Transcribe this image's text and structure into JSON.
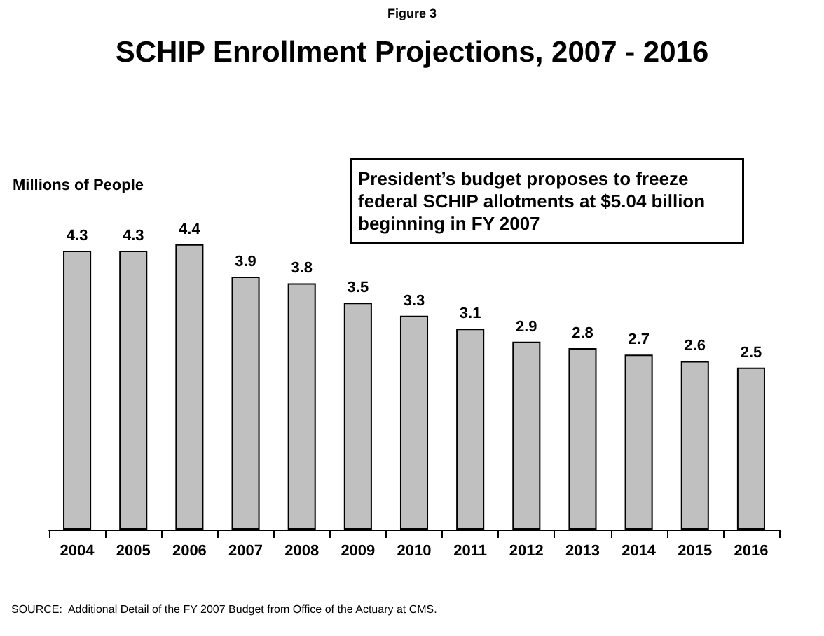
{
  "chart_data": {
    "type": "bar",
    "title": "SCHIP Enrollment Projections, 2007 - 2016",
    "ylabel": "Millions of People",
    "categories": [
      "2004",
      "2005",
      "2006",
      "2007",
      "2008",
      "2009",
      "2010",
      "2011",
      "2012",
      "2013",
      "2014",
      "2015",
      "2016"
    ],
    "values": [
      4.3,
      4.3,
      4.4,
      3.9,
      3.8,
      3.5,
      3.3,
      3.1,
      2.9,
      2.8,
      2.7,
      2.6,
      2.5
    ],
    "color": "#c0c0c0",
    "data_labels": true,
    "grid": false,
    "annotations": [
      "Figure 3",
      "President’s budget proposes to freeze federal SCHIP allotments at $5.04 billion beginning in FY 2007",
      "SOURCE:  Additional Detail of the FY 2007 Budget from Office of the Actuary at CMS."
    ]
  }
}
